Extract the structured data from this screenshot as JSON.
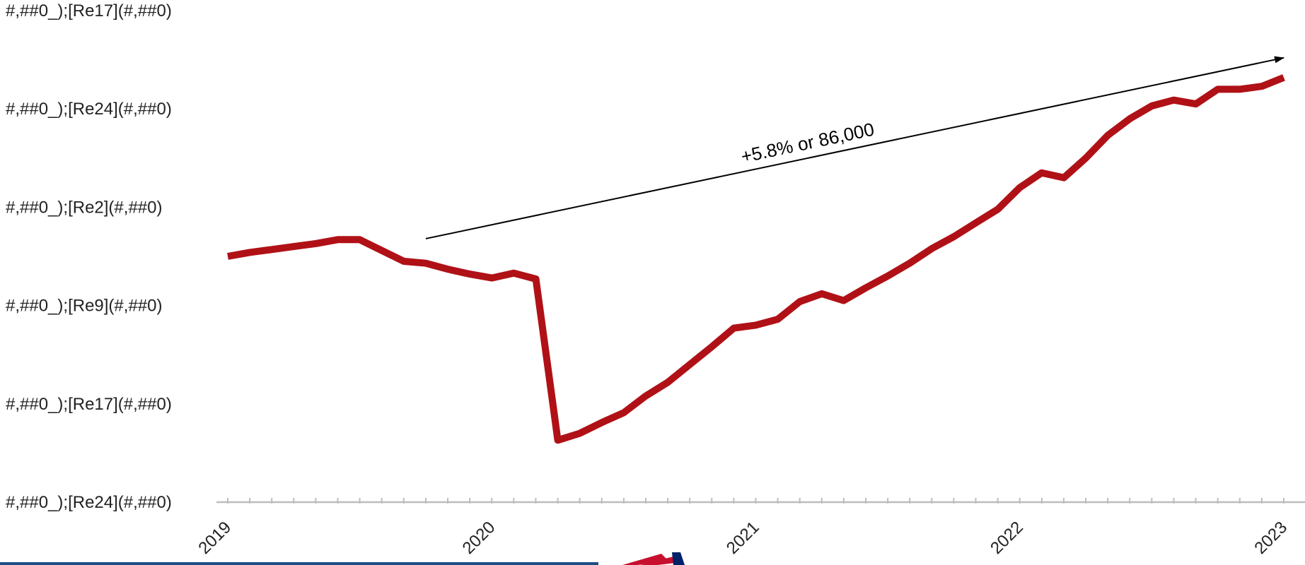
{
  "chart_data": {
    "type": "line",
    "title": "",
    "xlabel": "",
    "ylabel": "",
    "grid": false,
    "legend": "none",
    "x_tick_labels": [
      "2019",
      "2020",
      "2021",
      "2022",
      "2023"
    ],
    "y_tick_labels": [
      "#,##0_);[Re17](#,##0)",
      "#,##0_);[Re24](#,##0)",
      "#,##0_);[Re2](#,##0)",
      "#,##0_);[Re9](#,##0)",
      "#,##0_);[Re17](#,##0)",
      "#,##0_);[Re24](#,##0)"
    ],
    "xlim": [
      2019,
      2023
    ],
    "ylim": [
      0,
      5
    ],
    "series": [
      {
        "color": "#b01116",
        "x": [
          2019.0,
          2019.083,
          2019.167,
          2019.25,
          2019.333,
          2019.417,
          2019.5,
          2019.583,
          2019.667,
          2019.75,
          2019.833,
          2019.917,
          2020.0,
          2020.083,
          2020.167,
          2020.25,
          2020.333,
          2020.417,
          2020.5,
          2020.583,
          2020.667,
          2020.75,
          2020.833,
          2020.917,
          2021.0,
          2021.083,
          2021.167,
          2021.25,
          2021.333,
          2021.417,
          2021.5,
          2021.583,
          2021.667,
          2021.75,
          2021.833,
          2021.917,
          2022.0,
          2022.083,
          2022.167,
          2022.25,
          2022.333,
          2022.417,
          2022.5,
          2022.583,
          2022.667,
          2022.75,
          2022.833,
          2022.917,
          2023.0
        ],
        "values": [
          2.5,
          2.54,
          2.57,
          2.6,
          2.63,
          2.67,
          2.67,
          2.56,
          2.45,
          2.43,
          2.37,
          2.32,
          2.28,
          2.33,
          2.27,
          0.63,
          0.7,
          0.81,
          0.91,
          1.08,
          1.22,
          1.4,
          1.58,
          1.77,
          1.8,
          1.86,
          2.04,
          2.12,
          2.05,
          2.18,
          2.3,
          2.43,
          2.58,
          2.7,
          2.84,
          2.98,
          3.2,
          3.35,
          3.3,
          3.5,
          3.73,
          3.9,
          4.03,
          4.09,
          4.05,
          4.2,
          4.2,
          4.23,
          4.32
        ]
      }
    ],
    "annotations": [
      {
        "text": "+5.8% or 86,000",
        "arrow_from": [
          2019.75,
          2.68
        ],
        "arrow_to": [
          2023.0,
          4.52
        ],
        "text_at": [
          2020.95,
          3.45
        ]
      }
    ]
  },
  "footer": {
    "band_color": "#1d4f86",
    "logo_red": "#c8102e",
    "logo_blue": "#012169"
  }
}
